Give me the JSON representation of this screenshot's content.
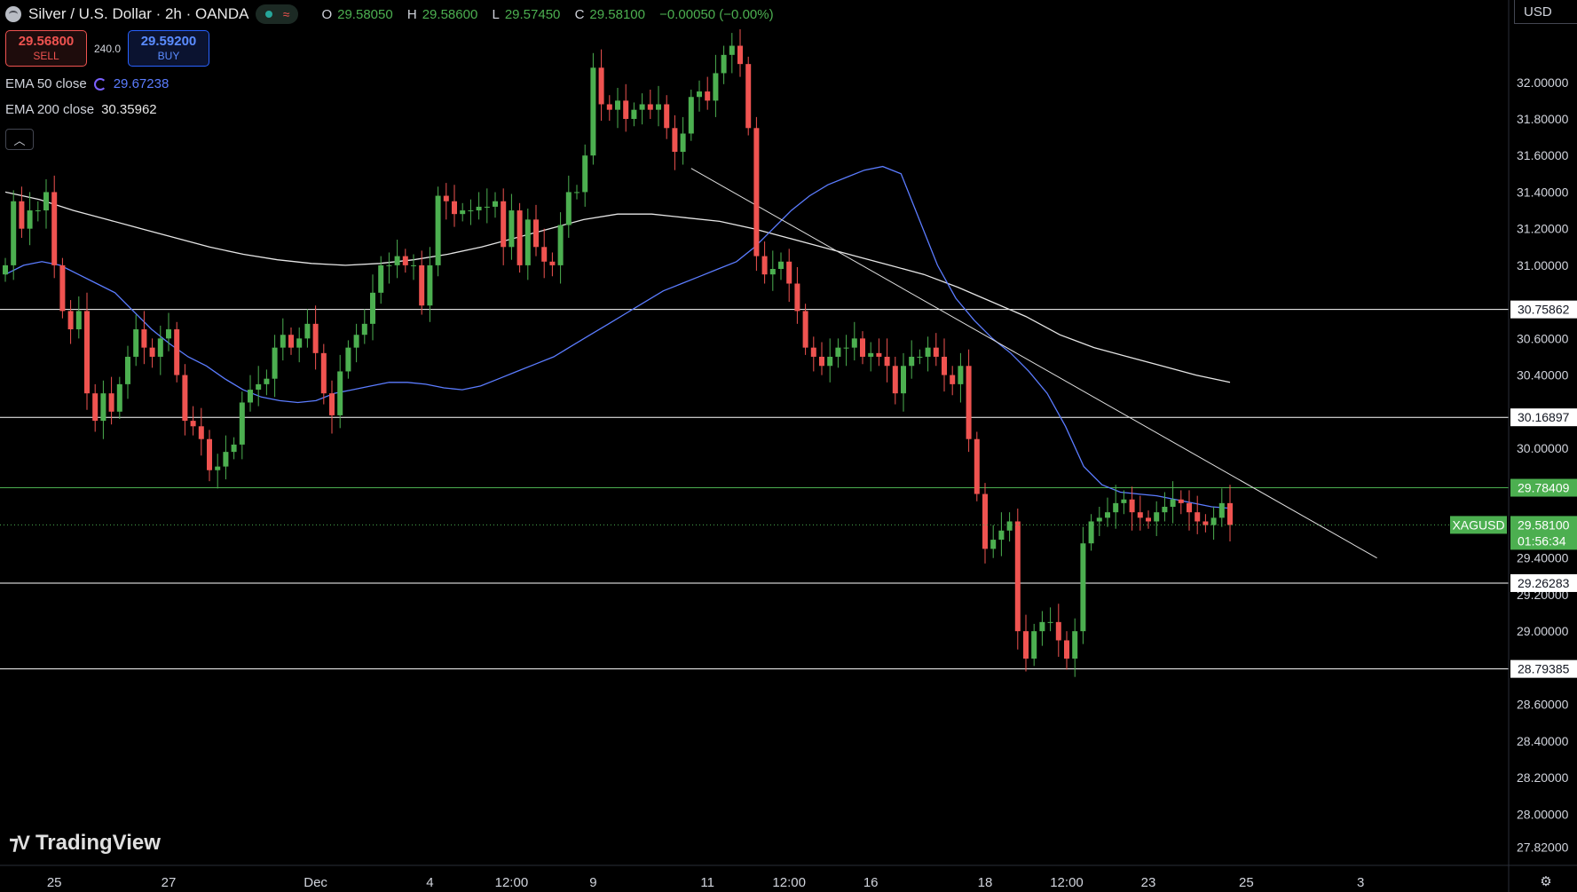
{
  "header": {
    "title": "Silver / U.S. Dollar · 2h · OANDA",
    "ohlc": [
      {
        "k": "O",
        "v": "29.58050"
      },
      {
        "k": "H",
        "v": "29.58600"
      },
      {
        "k": "L",
        "v": "29.57450"
      },
      {
        "k": "C",
        "v": "29.58100"
      },
      {
        "k": "",
        "v": "−0.00050 (−0.00%)"
      }
    ]
  },
  "trade": {
    "sell_price": "29.56800",
    "sell_label": "SELL",
    "spread": "240.0",
    "buy_price": "29.59200",
    "buy_label": "BUY"
  },
  "indicators": {
    "ema50": {
      "label": "EMA 50 close",
      "value": "29.67238",
      "color": "#5b7cff"
    },
    "ema200": {
      "label": "EMA 200 close",
      "value": "30.35962",
      "color": "#e6e6e6"
    }
  },
  "currency": "USD",
  "brand": "TradingView",
  "chart_data": {
    "type": "candlestick",
    "symbol": "XAGUSD",
    "timeframe": "2h",
    "ylim": [
      27.72,
      32.45
    ],
    "y_ticks": [
      "32.00000",
      "31.80000",
      "31.60000",
      "31.40000",
      "31.20000",
      "31.00000",
      "30.60000",
      "30.40000",
      "30.00000",
      "29.40000",
      "29.20000",
      "29.00000",
      "28.60000",
      "28.40000",
      "28.20000",
      "28.00000",
      "27.82000"
    ],
    "x_ticks": [
      {
        "label": "25",
        "i": 6
      },
      {
        "label": "27",
        "i": 20
      },
      {
        "label": "Dec",
        "i": 38
      },
      {
        "label": "4",
        "i": 52
      },
      {
        "label": "12:00",
        "i": 62
      },
      {
        "label": "9",
        "i": 72
      },
      {
        "label": "11",
        "i": 86
      },
      {
        "label": "12:00",
        "i": 96
      },
      {
        "label": "16",
        "i": 106
      },
      {
        "label": "18",
        "i": 120
      },
      {
        "label": "12:00",
        "i": 130
      },
      {
        "label": "23",
        "i": 140
      },
      {
        "label": "25",
        "i": 152
      },
      {
        "label": "3",
        "i": 166
      }
    ],
    "key_levels": [
      {
        "value": 30.75862,
        "label": "30.75862",
        "color": "#ffffff"
      },
      {
        "value": 30.16897,
        "label": "30.16897",
        "color": "#ffffff"
      },
      {
        "value": 29.78409,
        "label": "29.78409",
        "color": "#4caf50"
      },
      {
        "value": 29.26283,
        "label": "29.26283",
        "color": "#ffffff"
      },
      {
        "value": 28.79385,
        "label": "28.79385",
        "color": "#ffffff"
      }
    ],
    "last_price": {
      "value": 29.581,
      "label": "29.58100",
      "countdown": "01:56:34",
      "symbol_label": "XAGUSD"
    },
    "trendline": {
      "from": {
        "i": 84,
        "price": 31.53
      },
      "to": {
        "i": 168,
        "price": 29.4
      }
    },
    "closes": [
      31.0,
      31.35,
      31.2,
      31.3,
      31.3,
      31.4,
      31.0,
      30.75,
      30.65,
      30.75,
      30.3,
      30.15,
      30.3,
      30.2,
      30.35,
      30.5,
      30.65,
      30.55,
      30.5,
      30.6,
      30.65,
      30.4,
      30.15,
      30.12,
      30.05,
      29.88,
      29.9,
      29.98,
      30.02,
      30.25,
      30.32,
      30.35,
      30.38,
      30.55,
      30.62,
      30.55,
      30.6,
      30.68,
      30.52,
      30.3,
      30.18,
      30.42,
      30.55,
      30.62,
      30.68,
      30.85,
      31.0,
      31.0,
      31.05,
      31.0,
      31.0,
      30.78,
      31.0,
      31.38,
      31.35,
      31.28,
      31.3,
      31.3,
      31.32,
      31.32,
      31.35,
      31.1,
      31.3,
      31.0,
      31.25,
      31.1,
      31.02,
      31.0,
      31.22,
      31.4,
      31.4,
      31.6,
      32.08,
      31.88,
      31.85,
      31.9,
      31.8,
      31.85,
      31.88,
      31.85,
      31.88,
      31.75,
      31.62,
      31.72,
      31.92,
      31.95,
      31.9,
      32.05,
      32.15,
      32.2,
      32.1,
      31.75,
      31.05,
      30.95,
      30.98,
      31.02,
      30.9,
      30.75,
      30.55,
      30.5,
      30.45,
      30.5,
      30.55,
      30.55,
      30.6,
      30.5,
      30.52,
      30.5,
      30.45,
      30.3,
      30.45,
      30.5,
      30.5,
      30.55,
      30.5,
      30.4,
      30.35,
      30.45,
      30.05,
      29.75,
      29.45,
      29.5,
      29.55,
      29.6,
      29.0,
      28.85,
      29.0,
      29.05,
      29.05,
      28.95,
      28.85,
      29.0,
      29.48,
      29.6,
      29.62,
      29.65,
      29.7,
      29.72,
      29.65,
      29.62,
      29.6,
      29.65,
      29.68,
      29.72,
      29.7,
      29.65,
      29.6,
      29.58,
      29.62,
      29.7,
      29.581
    ],
    "ema50": [
      30.95,
      31.0,
      31.02,
      31.0,
      30.95,
      30.9,
      30.85,
      30.75,
      30.65,
      30.57,
      30.5,
      30.45,
      30.38,
      30.32,
      30.28,
      30.26,
      30.25,
      30.26,
      30.3,
      30.32,
      30.34,
      30.36,
      30.36,
      30.35,
      30.33,
      30.32,
      30.34,
      30.38,
      30.42,
      30.46,
      30.5,
      30.56,
      30.62,
      30.68,
      30.74,
      30.8,
      30.86,
      30.9,
      30.94,
      30.98,
      31.02,
      31.1,
      31.2,
      31.3,
      31.38,
      31.44,
      31.48,
      31.52,
      31.54,
      31.5,
      31.25,
      31.0,
      30.82,
      30.7,
      30.6,
      30.52,
      30.42,
      30.3,
      30.12,
      29.9,
      29.8,
      29.76,
      29.75,
      29.74,
      29.72,
      29.7,
      29.68,
      29.672
    ],
    "ema200": [
      31.4,
      31.36,
      31.3,
      31.25,
      31.2,
      31.15,
      31.1,
      31.06,
      31.03,
      31.01,
      31.0,
      31.01,
      31.03,
      31.06,
      31.1,
      31.15,
      31.2,
      31.25,
      31.28,
      31.28,
      31.26,
      31.24,
      31.2,
      31.15,
      31.1,
      31.05,
      31.0,
      30.95,
      30.88,
      30.8,
      30.72,
      30.62,
      30.55,
      30.5,
      30.45,
      30.4,
      30.36
    ]
  }
}
